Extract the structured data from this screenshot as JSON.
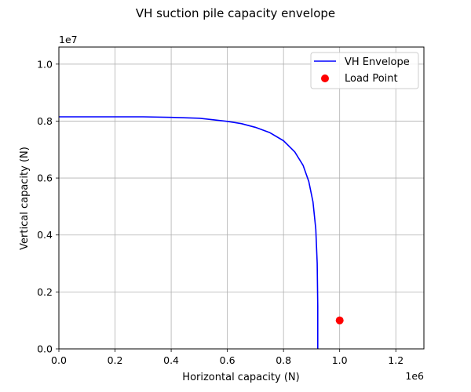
{
  "chart_data": {
    "type": "line",
    "title": "VH suction pile capacity envelope",
    "xlabel": "Horizontal capacity (N)",
    "ylabel": "Vertical capacity (N)",
    "x_offset_label": "1e6",
    "y_offset_label": "1e7",
    "xlim": [
      0,
      1.3
    ],
    "ylim": [
      0,
      1.06
    ],
    "x_ticks": [
      0.0,
      0.2,
      0.4,
      0.6,
      0.8,
      1.0,
      1.2
    ],
    "x_tick_labels": [
      "0.0",
      "0.2",
      "0.4",
      "0.6",
      "0.8",
      "1.0",
      "1.2"
    ],
    "y_ticks": [
      0.0,
      0.2,
      0.4,
      0.6,
      0.8,
      1.0
    ],
    "y_tick_labels": [
      "0.0",
      "0.2",
      "0.4",
      "0.6",
      "0.8",
      "1.0"
    ],
    "grid": true,
    "legend_position": "top-right",
    "series": [
      {
        "name": "VH Envelope",
        "kind": "line",
        "color": "#0000ff",
        "x": [
          0.0,
          0.2,
          0.3,
          0.4,
          0.5,
          0.6,
          0.65,
          0.7,
          0.75,
          0.8,
          0.84,
          0.87,
          0.89,
          0.905,
          0.915,
          0.92,
          0.922,
          0.922
        ],
        "y": [
          0.815,
          0.815,
          0.815,
          0.813,
          0.81,
          0.799,
          0.791,
          0.778,
          0.76,
          0.731,
          0.692,
          0.644,
          0.588,
          0.516,
          0.42,
          0.3,
          0.15,
          0.0
        ]
      },
      {
        "name": "Load Point",
        "kind": "scatter",
        "color": "#ff0000",
        "x": [
          1.0
        ],
        "y": [
          0.1
        ]
      }
    ]
  }
}
